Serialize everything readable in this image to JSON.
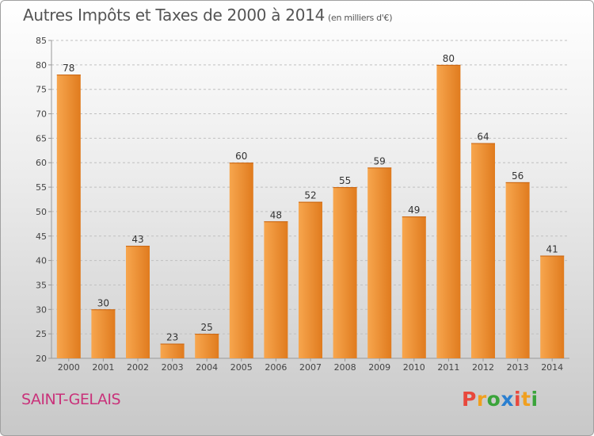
{
  "header": {
    "title": "Autres Impôts et Taxes de 2000 à 2014",
    "unit": "(en milliers d'€)"
  },
  "footer": {
    "commune": "SAINT-GELAIS",
    "logo_letters": [
      "P",
      "r",
      "o",
      "x",
      "i",
      "t",
      "i"
    ],
    "logo_colors": [
      "#e8483c",
      "#f0a020",
      "#3aa43a",
      "#2a7fd0",
      "#e8483c",
      "#f0a020",
      "#3aa43a"
    ]
  },
  "colors": {
    "bar_light": "#f7a64e",
    "bar_dark": "#e07b1e",
    "commune": "#c9327a",
    "grid": "#c0c0c0"
  },
  "chart_data": {
    "type": "bar",
    "categories": [
      "2000",
      "2001",
      "2002",
      "2003",
      "2004",
      "2005",
      "2006",
      "2007",
      "2008",
      "2009",
      "2010",
      "2011",
      "2012",
      "2013",
      "2014"
    ],
    "values": [
      78,
      30,
      43,
      23,
      25,
      60,
      48,
      52,
      55,
      59,
      49,
      80,
      64,
      56,
      41
    ],
    "ylim": [
      20,
      85
    ],
    "yticks": [
      20,
      25,
      30,
      35,
      40,
      45,
      50,
      55,
      60,
      65,
      70,
      75,
      80,
      85
    ],
    "grid": true
  }
}
